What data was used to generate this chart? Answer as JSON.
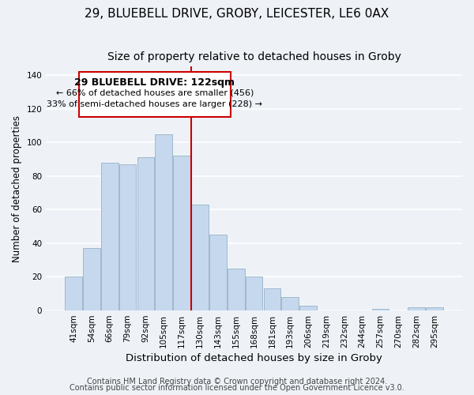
{
  "title": "29, BLUEBELL DRIVE, GROBY, LEICESTER, LE6 0AX",
  "subtitle": "Size of property relative to detached houses in Groby",
  "xlabel": "Distribution of detached houses by size in Groby",
  "ylabel": "Number of detached properties",
  "bar_labels": [
    "41sqm",
    "54sqm",
    "66sqm",
    "79sqm",
    "92sqm",
    "105sqm",
    "117sqm",
    "130sqm",
    "143sqm",
    "155sqm",
    "168sqm",
    "181sqm",
    "193sqm",
    "206sqm",
    "219sqm",
    "232sqm",
    "244sqm",
    "257sqm",
    "270sqm",
    "282sqm",
    "295sqm"
  ],
  "bar_values": [
    20,
    37,
    88,
    87,
    91,
    105,
    92,
    63,
    45,
    25,
    20,
    13,
    8,
    3,
    0,
    0,
    0,
    1,
    0,
    2,
    2
  ],
  "bar_color": "#c5d8ed",
  "bar_edge_color": "#a0b8cc",
  "vline_x": 6.5,
  "vline_color": "#cc0000",
  "ylim": [
    0,
    145
  ],
  "yticks": [
    0,
    20,
    40,
    60,
    80,
    100,
    120,
    140
  ],
  "annotation_title": "29 BLUEBELL DRIVE: 122sqm",
  "annotation_line1": "← 66% of detached houses are smaller (456)",
  "annotation_line2": "33% of semi-detached houses are larger (228) →",
  "annotation_box_color": "#ffffff",
  "annotation_box_edge": "#cc0000",
  "footer1": "Contains HM Land Registry data © Crown copyright and database right 2024.",
  "footer2": "Contains public sector information licensed under the Open Government Licence v3.0.",
  "background_color": "#eef2f7",
  "grid_color": "#ffffff",
  "title_fontsize": 11,
  "subtitle_fontsize": 10,
  "xlabel_fontsize": 9.5,
  "ylabel_fontsize": 8.5,
  "tick_fontsize": 7.5,
  "footer_fontsize": 7
}
